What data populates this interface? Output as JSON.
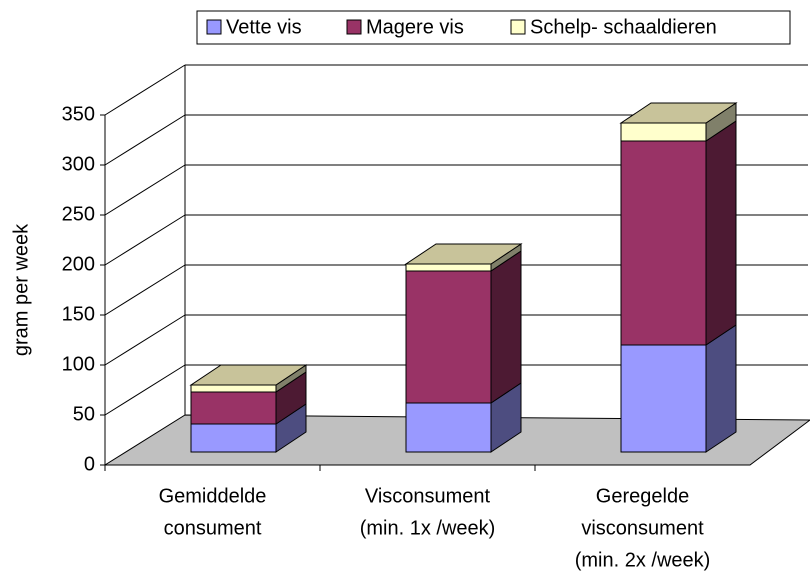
{
  "chart_data": {
    "type": "bar3d_stacked",
    "categories": [
      [
        "Gemiddelde",
        "consument"
      ],
      [
        "Visconsument",
        "(min. 1x /week)"
      ],
      [
        "Geregelde",
        "visconsument",
        "(min. 2x /week)"
      ]
    ],
    "series": [
      {
        "name": "Vette vis",
        "color": "#9999ff",
        "side_color": "#4d4d80",
        "values": [
          28,
          49,
          107
        ]
      },
      {
        "name": "Magere vis",
        "color": "#993366",
        "side_color": "#4d1a33",
        "values": [
          32,
          132,
          204
        ]
      },
      {
        "name": "Schelp- schaaldieren",
        "color": "#ffffcc",
        "side_color": "#80806a",
        "values": [
          7,
          7,
          18
        ]
      }
    ],
    "top_color": "#c8c39a",
    "y_label": "gram per week",
    "ylim": [
      0,
      350
    ],
    "yticks": [
      0,
      50,
      100,
      150,
      200,
      250,
      300,
      350
    ],
    "grid": true,
    "floor_color": "#c0c0c0",
    "legend": "top"
  }
}
